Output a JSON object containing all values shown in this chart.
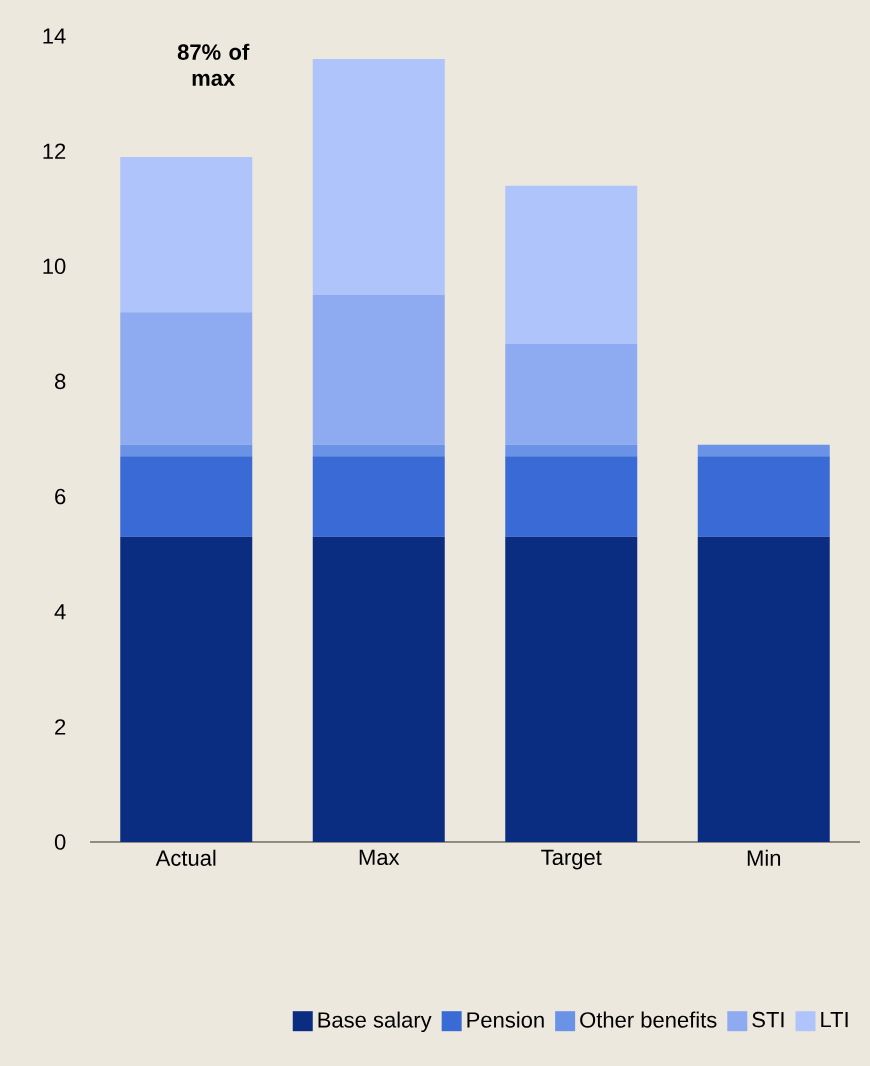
{
  "chart_data": {
    "type": "bar",
    "stacked": true,
    "categories": [
      "Actual",
      "Max",
      "Target",
      "Min"
    ],
    "series": [
      {
        "name": "Base salary",
        "color": "#0a2d82",
        "values": [
          5.3,
          5.3,
          5.3,
          5.3
        ]
      },
      {
        "name": "Pension",
        "color": "#3a6ad6",
        "values": [
          1.4,
          1.4,
          1.4,
          1.4
        ]
      },
      {
        "name": "Other benefits",
        "color": "#6a93e8",
        "values": [
          0.2,
          0.2,
          0.2,
          0.2
        ]
      },
      {
        "name": "STI",
        "color": "#8eaaf0",
        "values": [
          2.3,
          2.6,
          1.75,
          0
        ]
      },
      {
        "name": "LTI",
        "color": "#aec4fb",
        "values": [
          2.7,
          4.1,
          2.75,
          0
        ]
      }
    ],
    "ylim": [
      0,
      14
    ],
    "yticks": [
      0,
      2,
      4,
      6,
      8,
      10,
      12,
      14
    ],
    "legend": "bottom",
    "grid": false,
    "annotations": [
      "87% of max"
    ]
  }
}
